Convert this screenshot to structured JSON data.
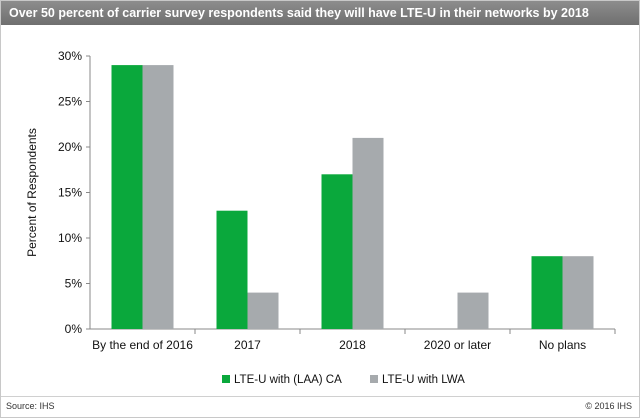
{
  "header": {
    "title": "Over 50 percent of carrier survey respondents said they will have LTE-U in their networks by 2018"
  },
  "footer": {
    "source": "Source: IHS",
    "copyright": "© 2016 IHS"
  },
  "colors": {
    "series_1": "#0aa83c",
    "series_2": "#a6aaad"
  },
  "chart_data": {
    "type": "bar",
    "ylabel": "Percent of Respondents",
    "xlabel": "",
    "ylim": [
      0,
      30
    ],
    "yticks": [
      "0%",
      "5%",
      "10%",
      "15%",
      "20%",
      "25%",
      "30%"
    ],
    "tick_values": [
      0,
      5,
      10,
      15,
      20,
      25,
      30
    ],
    "categories": [
      "By the end of 2016",
      "2017",
      "2018",
      "2020 or later",
      "No plans"
    ],
    "series": [
      {
        "name": "LTE-U with (LAA) CA",
        "values": [
          29,
          13,
          17,
          0,
          8
        ]
      },
      {
        "name": "LTE-U with LWA",
        "values": [
          29,
          4,
          21,
          4,
          8
        ]
      }
    ],
    "legend": "bottom-center",
    "grid": false
  }
}
